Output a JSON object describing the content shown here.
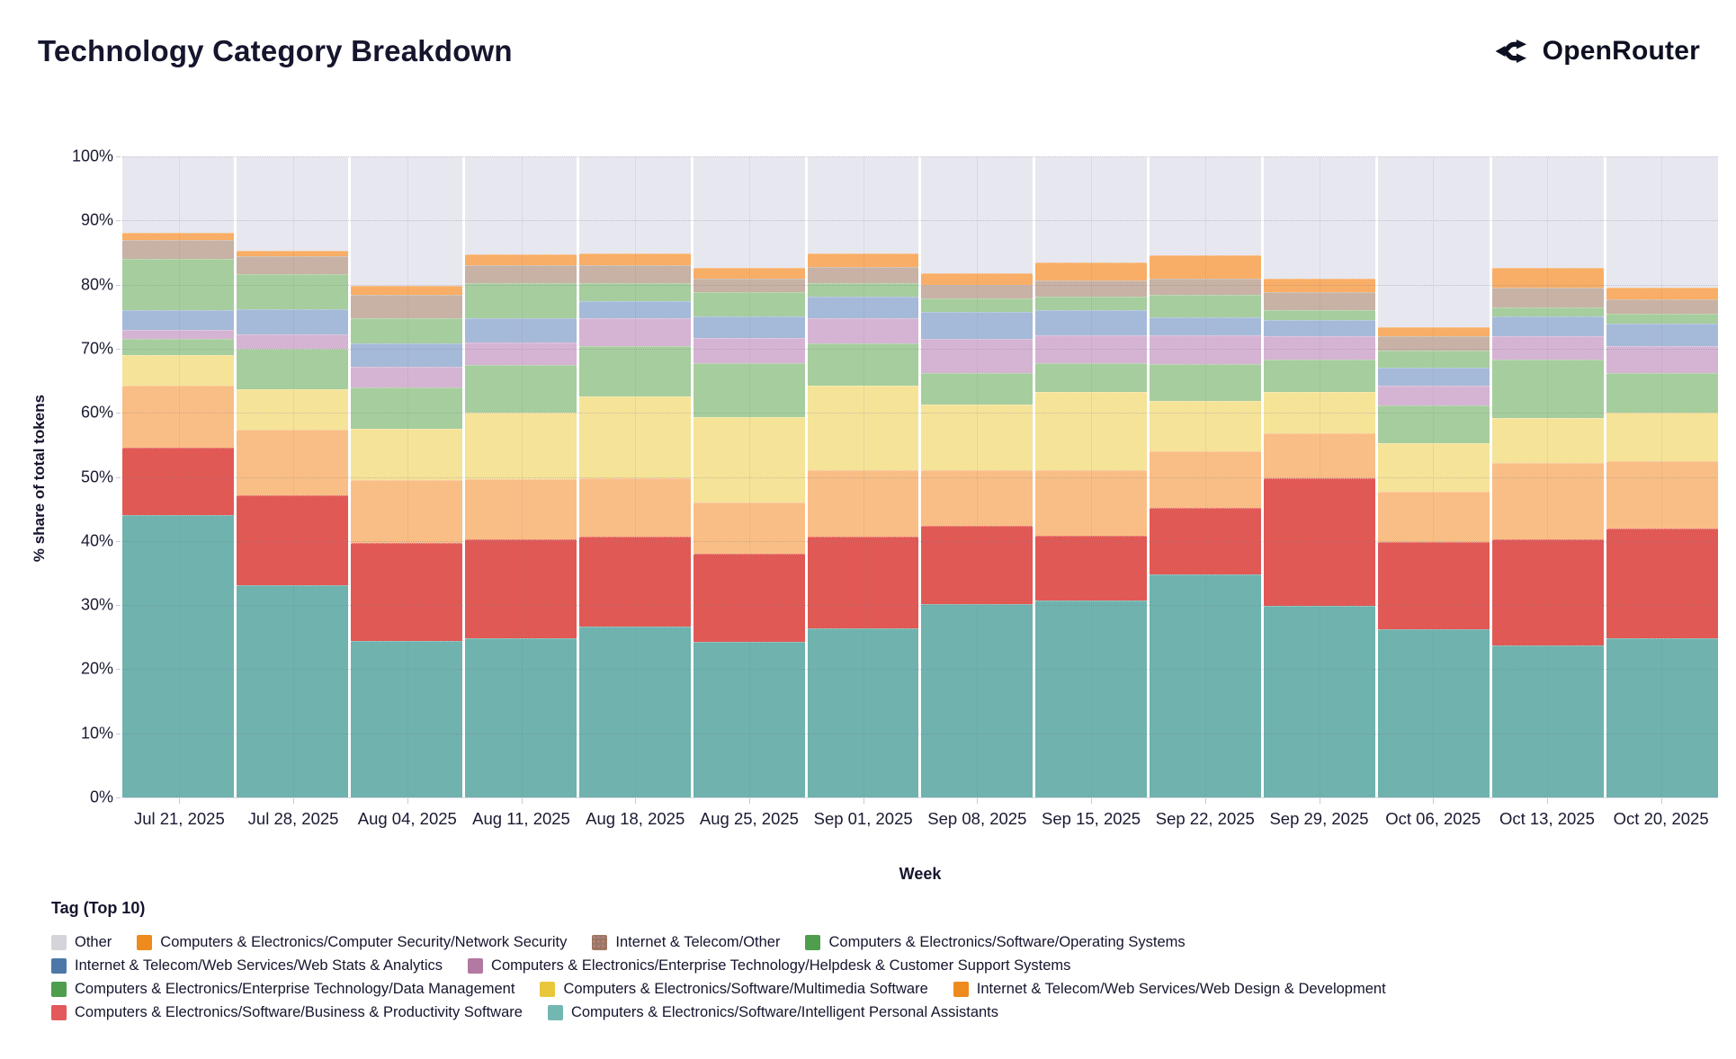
{
  "header": {
    "title": "Technology Category Breakdown",
    "brand": "OpenRouter"
  },
  "chart_data": {
    "type": "bar",
    "stacked": true,
    "title": "Technology Category Breakdown",
    "xlabel": "Week",
    "ylabel": "% share of total tokens",
    "ylim": [
      0,
      100
    ],
    "ytick_values": [
      0,
      10,
      20,
      30,
      40,
      50,
      60,
      70,
      80,
      90,
      100
    ],
    "ytick_labels": [
      "0%",
      "10%",
      "20%",
      "30%",
      "40%",
      "50%",
      "60%",
      "70%",
      "80%",
      "90%",
      "100%"
    ],
    "categories": [
      "Jul 21, 2025",
      "Jul 28, 2025",
      "Aug 04, 2025",
      "Aug 11, 2025",
      "Aug 18, 2025",
      "Aug 25, 2025",
      "Sep 01, 2025",
      "Sep 08, 2025",
      "Sep 15, 2025",
      "Sep 22, 2025",
      "Sep 29, 2025",
      "Oct 06, 2025",
      "Oct 13, 2025",
      "Oct 20, 2025"
    ],
    "series": [
      {
        "key": "ipa",
        "name": "Computers & Electronics/Software/Intelligent Personal Assistants",
        "bar_color": "#6FB2AE",
        "legend_color": "#72B7B2",
        "pattern": "none",
        "values": [
          44.0,
          33.1,
          24.4,
          24.8,
          26.7,
          24.2,
          26.4,
          30.2,
          30.7,
          34.8,
          29.9,
          26.2,
          23.7,
          24.8
        ]
      },
      {
        "key": "bp",
        "name": "Computers & Electronics/Software/Business & Productivity Software",
        "bar_color": "#E15955",
        "legend_color": "#E25A5A",
        "pattern": "none",
        "values": [
          10.6,
          14.0,
          15.3,
          15.4,
          14.0,
          13.8,
          14.3,
          12.2,
          10.1,
          10.4,
          19.9,
          13.7,
          16.6,
          17.1
        ]
      },
      {
        "key": "webdesign",
        "name": "Internet & Telecom/Web Services/Web Design & Development",
        "bar_color": "#F9BE85",
        "legend_color": "#EE8A1E",
        "pattern": "none",
        "values": [
          9.7,
          10.3,
          9.8,
          9.5,
          9.1,
          8.0,
          10.4,
          8.6,
          10.2,
          8.8,
          7.0,
          7.8,
          11.9,
          10.5
        ]
      },
      {
        "key": "multimedia",
        "name": "Computers & Electronics/Software/Multimedia Software",
        "bar_color": "#F5E398",
        "legend_color": "#E9C73B",
        "pattern": "none",
        "values": [
          4.7,
          6.3,
          8.0,
          10.4,
          12.7,
          13.3,
          13.2,
          10.3,
          12.2,
          7.8,
          6.4,
          7.5,
          7.0,
          7.7
        ]
      },
      {
        "key": "datamgmt",
        "name": "Computers & Electronics/Enterprise Technology/Data Management",
        "bar_color": "#A6CD9D",
        "legend_color": "#4E9E4E",
        "pattern": "none",
        "values": [
          2.5,
          6.3,
          6.4,
          7.4,
          7.9,
          8.4,
          6.5,
          4.9,
          4.6,
          5.8,
          5.1,
          5.9,
          9.1,
          6.1
        ]
      },
      {
        "key": "helpdesk",
        "name": "Computers & Electronics/Enterprise Technology/Helpdesk & Customer Support Systems",
        "bar_color": "#D5B4D3",
        "legend_color": "#B279A2",
        "pattern": "dots-purple",
        "values": [
          1.5,
          2.2,
          3.3,
          3.5,
          4.4,
          4.0,
          4.0,
          5.3,
          4.3,
          4.5,
          3.7,
          3.2,
          3.6,
          4.2
        ]
      },
      {
        "key": "webstats",
        "name": "Internet & Telecom/Web Services/Web Stats & Analytics",
        "bar_color": "#A5BAD8",
        "legend_color": "#4C78A8",
        "pattern": "none",
        "values": [
          3.0,
          4.0,
          3.6,
          3.8,
          2.6,
          3.4,
          3.3,
          4.3,
          3.9,
          2.8,
          2.5,
          2.7,
          3.2,
          3.5
        ]
      },
      {
        "key": "os",
        "name": "Computers & Electronics/Software/Operating Systems",
        "bar_color": "#A6CD9D",
        "legend_color": "#4E9E4E",
        "pattern": "none",
        "values": [
          8.0,
          5.5,
          4.0,
          5.4,
          2.8,
          3.7,
          2.2,
          2.0,
          2.1,
          3.5,
          1.5,
          2.7,
          1.4,
          1.6
        ]
      },
      {
        "key": "itother",
        "name": "Internet & Telecom/Other",
        "bar_color": "#C8B2A5",
        "legend_color": "#9D755D",
        "pattern": "dots-brown",
        "values": [
          3.0,
          2.7,
          3.6,
          2.8,
          2.8,
          2.1,
          2.5,
          2.2,
          2.6,
          2.5,
          2.8,
          2.2,
          3.1,
          2.2
        ]
      },
      {
        "key": "netsec",
        "name": "Computers & Electronics/Computer Security/Network Security",
        "bar_color": "#F8AE66",
        "legend_color": "#EE8A1E",
        "pattern": "none",
        "values": [
          1.1,
          0.9,
          1.4,
          1.7,
          1.9,
          1.7,
          2.1,
          1.8,
          2.8,
          3.7,
          2.1,
          1.5,
          3.0,
          1.8
        ]
      },
      {
        "key": "other",
        "name": "Other",
        "bar_color": "#E7E7EF",
        "legend_color": "#D4D4DA",
        "pattern": "none",
        "values": [
          11.9,
          14.7,
          20.2,
          15.3,
          15.1,
          17.4,
          15.1,
          18.2,
          16.5,
          15.4,
          19.1,
          26.6,
          17.4,
          20.5
        ]
      }
    ],
    "legend": {
      "title": "Tag (Top 10)",
      "position": "bottom",
      "rows": [
        [
          "other",
          "netsec",
          "itother",
          "os"
        ],
        [
          "webstats",
          "helpdesk"
        ],
        [
          "datamgmt",
          "multimedia",
          "webdesign"
        ],
        [
          "bp",
          "ipa"
        ]
      ]
    },
    "grid": "on"
  }
}
